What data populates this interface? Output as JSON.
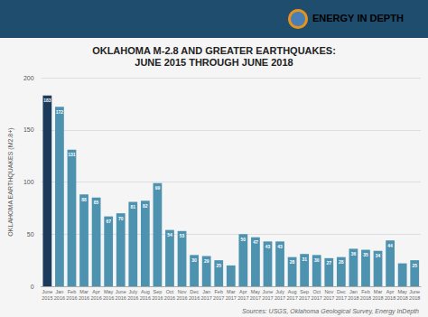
{
  "chart_data": {
    "type": "bar",
    "title": "OKLAHOMA M-2.8 AND GREATER EARTHQUAKES:",
    "subtitle": "JUNE 2015 THROUGH JUNE 2018",
    "ylabel": "OKLAHOMA EARTHQUAKES (M2.8+)",
    "categories": [
      "June\n2015",
      "Jan\n2016",
      "Feb\n2016",
      "Mar\n2016",
      "Apr\n2016",
      "May\n2016",
      "June\n2016",
      "July\n2016",
      "Aug\n2016",
      "Sep\n2016",
      "Oct\n2016",
      "Nov\n2016",
      "Dec\n2016",
      "Jan\n2017",
      "Feb\n2017",
      "Mar\n2017",
      "Apr\n2017",
      "May\n2017",
      "June\n2017",
      "July\n2017",
      "Aug\n2017",
      "Sep\n2017",
      "Oct\n2017",
      "Nov\n2017",
      "Dec\n2017",
      "Jan\n2018",
      "Feb\n2018",
      "Mar\n2018",
      "Apr\n2018",
      "May\n2018",
      "June\n2018"
    ],
    "values": [
      183,
      172,
      131,
      88,
      85,
      67,
      70,
      81,
      82,
      99,
      54,
      53,
      30,
      29,
      25,
      20,
      50,
      47,
      43,
      43,
      28,
      31,
      30,
      27,
      28,
      36,
      35,
      34,
      44,
      22,
      25
    ],
    "value_labels": [
      "183",
      "172",
      "131",
      "88",
      "85",
      "67",
      "70",
      "81",
      "82",
      "99",
      "54",
      "53",
      "30",
      "29",
      "25",
      null,
      "50",
      "47",
      "43",
      "43",
      "28",
      "31",
      "30",
      "27",
      "28",
      "36",
      "35",
      "34",
      "44",
      null,
      "25"
    ],
    "colors": [
      "#1b3a5c",
      "#4d93b0",
      "#4d93b0",
      "#4d93b0",
      "#4d93b0",
      "#4d93b0",
      "#4d93b0",
      "#4d93b0",
      "#4d93b0",
      "#4d93b0",
      "#4d93b0",
      "#4d93b0",
      "#4d93b0",
      "#4d93b0",
      "#4d93b0",
      "#4d93b0",
      "#4d93b0",
      "#4d93b0",
      "#4d93b0",
      "#4d93b0",
      "#4d93b0",
      "#4d93b0",
      "#4d93b0",
      "#4d93b0",
      "#4d93b0",
      "#4d93b0",
      "#4d93b0",
      "#4d93b0",
      "#4d93b0",
      "#4d93b0",
      "#4d93b0"
    ],
    "ylim": [
      0,
      200
    ],
    "yticks": [
      0,
      50,
      100,
      150,
      200
    ],
    "grid": true,
    "annotations": [
      {
        "text": "ENERGY",
        "color": "#ffffff"
      },
      {
        "text": "IN",
        "color": "#e8921a"
      },
      {
        "text": "DEPTH",
        "color": "#ffffff"
      },
      {
        "text": "Sources: USGS, Oklahoma Geological Survey, Energy InDepth"
      }
    ]
  }
}
